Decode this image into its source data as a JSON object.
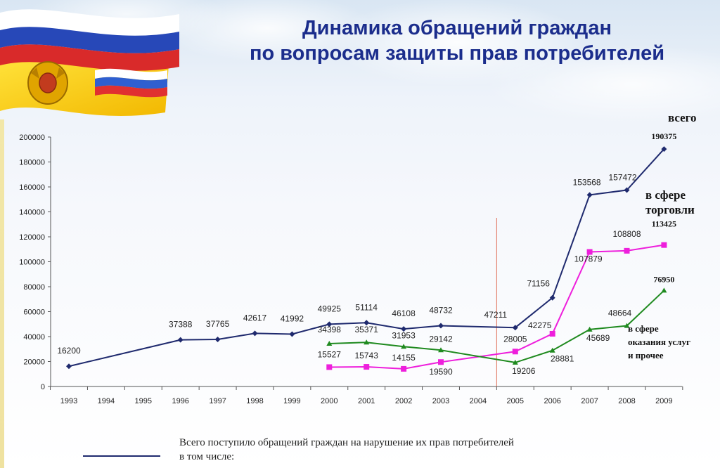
{
  "title_line1": "Динамика обращений граждан",
  "title_line2": "по вопросам защиты прав потребителей",
  "labels": {
    "total": "всего",
    "trade_line1": "в сфере",
    "trade_line2": "торговли",
    "services_line1": "в сфере",
    "services_line2": "оказания услуг",
    "services_line3": "и прочее"
  },
  "legend": {
    "line1": "Всего поступило обращений граждан на нарушение их прав потребителей",
    "line2": "в том числе:"
  },
  "colors": {
    "total": "#1f2a6e",
    "trade": "#ee1fdc",
    "services": "#1f8a1f",
    "divider": "#e0705a",
    "title": "#1b2d8c"
  },
  "chart_data": {
    "type": "line",
    "categories": [
      "1993",
      "1994",
      "1995",
      "1996",
      "1997",
      "1998",
      "1999",
      "2000",
      "2001",
      "2002",
      "2003",
      "2004",
      "2005",
      "2006",
      "2007",
      "2008",
      "2009"
    ],
    "ylim": [
      0,
      200000
    ],
    "yticks": [
      0,
      20000,
      40000,
      60000,
      80000,
      100000,
      120000,
      140000,
      160000,
      180000,
      200000
    ],
    "ytick_labels": [
      "0",
      "20000",
      "40000",
      "60000",
      "80000",
      "100000",
      "120000",
      "140000",
      "160000",
      "180000",
      "200000"
    ],
    "divider_at": "2005",
    "series": [
      {
        "key": "total",
        "x": [
          "1993",
          "1996",
          "1997",
          "1998",
          "1999",
          "2000",
          "2001",
          "2002",
          "2003",
          "2005",
          "2006",
          "2007",
          "2008",
          "2009"
        ],
        "values": [
          16200,
          37388,
          37765,
          42617,
          41992,
          49925,
          51114,
          46108,
          48732,
          47211,
          71156,
          153568,
          157472,
          190375
        ],
        "labels": [
          "16200",
          "37388",
          "37765",
          "42617",
          "41992",
          "49925",
          "51114",
          "46108",
          "48732",
          "47211",
          "71156",
          "153568",
          "157472",
          "190375"
        ]
      },
      {
        "key": "trade",
        "x": [
          "2000",
          "2001",
          "2002",
          "2003",
          "2005",
          "2006",
          "2007",
          "2008",
          "2009"
        ],
        "values": [
          15527,
          15743,
          14155,
          19590,
          28005,
          42275,
          107879,
          108808,
          113425
        ],
        "labels": [
          "15527",
          "15743",
          "14155",
          "19590",
          "28005",
          "42275",
          "107879",
          "108808",
          "113425"
        ]
      },
      {
        "key": "services",
        "x": [
          "2000",
          "2001",
          "2002",
          "2003",
          "2005",
          "2006",
          "2007",
          "2008",
          "2009"
        ],
        "values": [
          34398,
          35371,
          31953,
          29142,
          19206,
          28881,
          45689,
          48664,
          76950
        ],
        "labels": [
          "34398",
          "35371",
          "31953",
          "29142",
          "19206",
          "28881",
          "45689",
          "48664",
          "76950"
        ]
      }
    ]
  }
}
